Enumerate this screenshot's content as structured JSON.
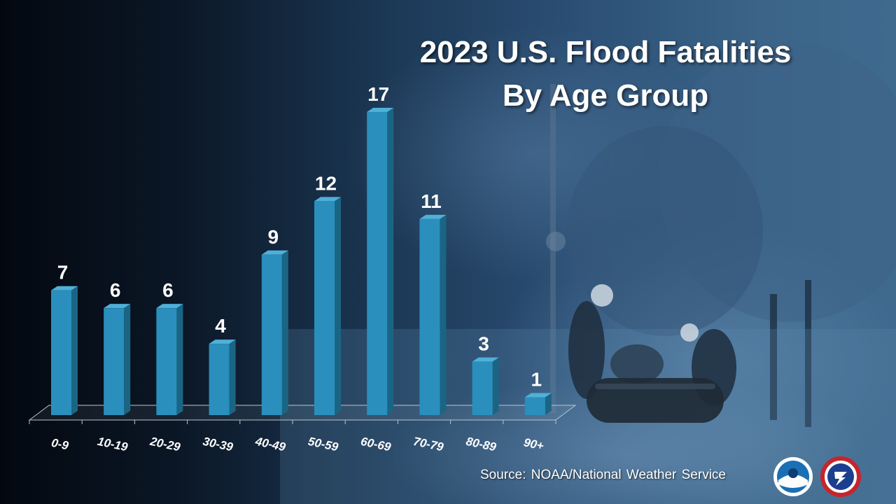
{
  "title": {
    "line1": "2023 U.S. Flood Fatalities",
    "line2": "By Age Group"
  },
  "source": {
    "label": "Source:",
    "text": "NOAA/National Weather Service"
  },
  "logos": {
    "noaa": "noaa-logo",
    "nws": "nws-logo"
  },
  "colors": {
    "bar_front": "#2a8fbd",
    "bar_side": "#1b6584",
    "bar_top": "#4fb0d8",
    "label": "#ffffff"
  },
  "chart_data": {
    "type": "bar",
    "categories": [
      "0-9",
      "10-19",
      "20-29",
      "30-39",
      "40-49",
      "50-59",
      "60-69",
      "70-79",
      "80-89",
      "90+"
    ],
    "values": [
      7,
      6,
      6,
      4,
      9,
      12,
      17,
      11,
      3,
      1
    ],
    "title": "2023 U.S. Flood Fatalities By Age Group",
    "ylim": [
      0,
      17
    ],
    "grid": false,
    "data_labels": true
  }
}
